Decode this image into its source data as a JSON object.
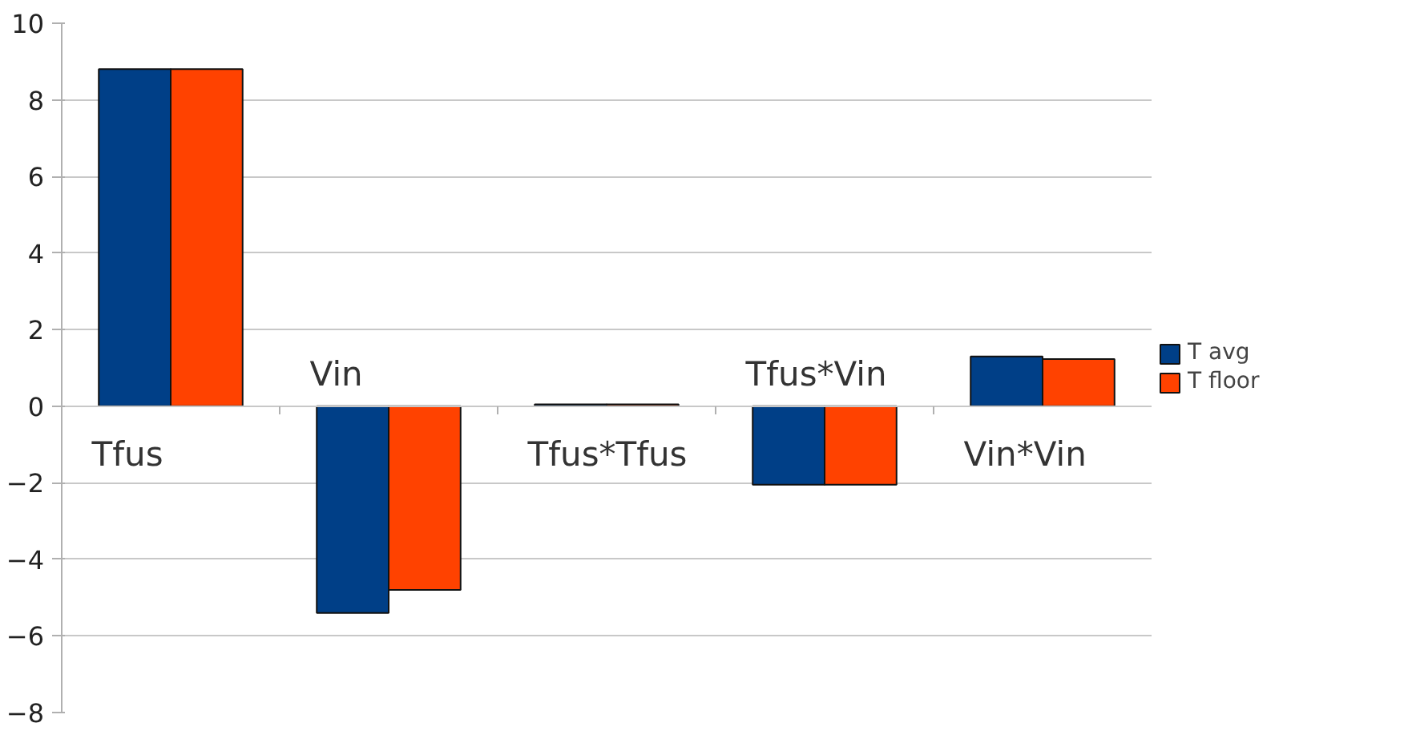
{
  "chart_data": {
    "type": "bar",
    "categories": [
      "Tfus",
      "Vin",
      "Tfus*Tfus",
      "Tfus*Vin",
      "Vin*Vin"
    ],
    "series": [
      {
        "name": "T avg",
        "color": "#003f87",
        "values": [
          8.8,
          -5.4,
          0.05,
          -2.05,
          1.3
        ]
      },
      {
        "name": "T floor",
        "color": "#ff4200",
        "values": [
          8.8,
          -4.8,
          0.05,
          -2.05,
          1.23
        ]
      }
    ],
    "ylim": [
      -8,
      10
    ],
    "yticks": [
      -8,
      -6,
      -4,
      -2,
      0,
      2,
      4,
      6,
      8,
      10
    ],
    "grid": "y",
    "legend": "right"
  }
}
